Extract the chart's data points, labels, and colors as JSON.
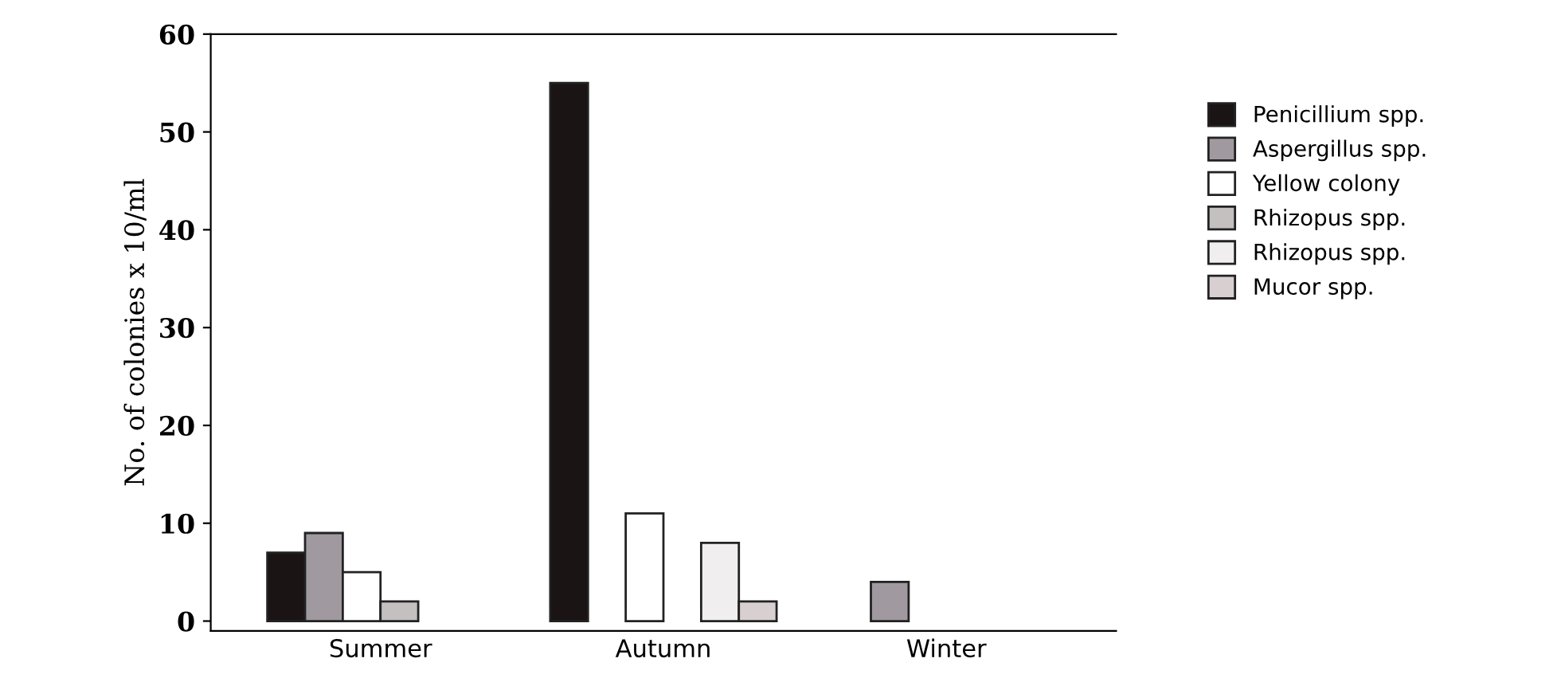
{
  "chart_data": {
    "type": "bar",
    "ylabel": "No. of colonies x 10/ml",
    "categories": [
      "Summer",
      "Autumn",
      "Winter"
    ],
    "series": [
      {
        "name": "Penicillium spp.",
        "color": "#1a1414",
        "values": [
          7,
          55,
          0
        ]
      },
      {
        "name": "Aspergillus spp.",
        "color": "#a09aa0",
        "values": [
          9,
          0,
          4
        ]
      },
      {
        "name": "Yellow colony",
        "color": "#ffffff",
        "values": [
          5,
          11,
          0
        ]
      },
      {
        "name": "Rhizopus spp.",
        "color": "#c4c0c0",
        "values": [
          2,
          0,
          0
        ]
      },
      {
        "name": "Rhizopus spp.",
        "color": "#f0eeee",
        "values": [
          0,
          8,
          0
        ]
      },
      {
        "name": "Mucor spp.",
        "color": "#d8d0d0",
        "values": [
          0,
          2,
          0
        ]
      }
    ],
    "ylim": [
      -1,
      60
    ],
    "yticks": [
      0,
      10,
      20,
      30,
      40,
      50,
      60
    ],
    "legend": "right",
    "grid": false
  }
}
